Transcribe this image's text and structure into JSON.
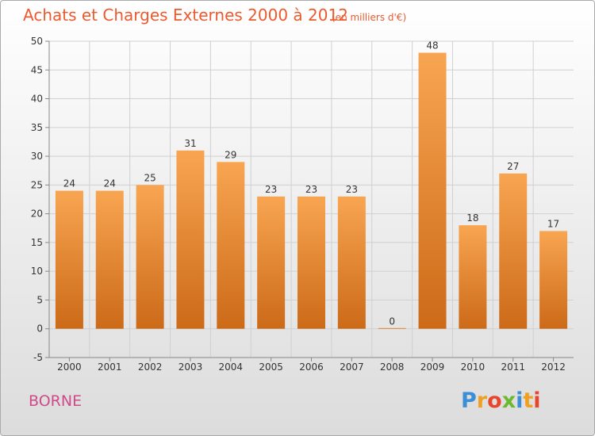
{
  "chart_data": {
    "type": "bar",
    "title": "Achats et Charges Externes 2000 à 2012",
    "subtitle": "(en milliers d'€)",
    "categories": [
      "2000",
      "2001",
      "2002",
      "2003",
      "2004",
      "2005",
      "2006",
      "2007",
      "2008",
      "2009",
      "2010",
      "2011",
      "2012"
    ],
    "values": [
      24,
      24,
      25,
      31,
      29,
      23,
      23,
      23,
      0,
      48,
      18,
      27,
      17
    ],
    "data_labels": [
      "24",
      "24",
      "25",
      "31",
      "29",
      "23",
      "23",
      "23",
      "0",
      "48",
      "18",
      "27",
      "17"
    ],
    "yticks": [
      "-5",
      "0",
      "5",
      "10",
      "15",
      "20",
      "25",
      "30",
      "35",
      "40",
      "45",
      "50"
    ],
    "ylim": [
      -5,
      50
    ],
    "xlabel": "",
    "ylabel": "",
    "grid": true,
    "bar_color_top": "#f8a551",
    "bar_color_bottom": "#cc6a18"
  },
  "footer": {
    "commune": "BORNE",
    "logo": "Proxiti",
    "logo_letters": [
      {
        "ch": "P",
        "color": "#3a8fd6"
      },
      {
        "ch": "r",
        "color": "#f0a020"
      },
      {
        "ch": "o",
        "color": "#e8452c"
      },
      {
        "ch": "x",
        "color": "#6ab92f"
      },
      {
        "ch": "i",
        "color": "#3a8fd6"
      },
      {
        "ch": "t",
        "color": "#f0a020"
      },
      {
        "ch": "i",
        "color": "#e8452c"
      }
    ]
  }
}
